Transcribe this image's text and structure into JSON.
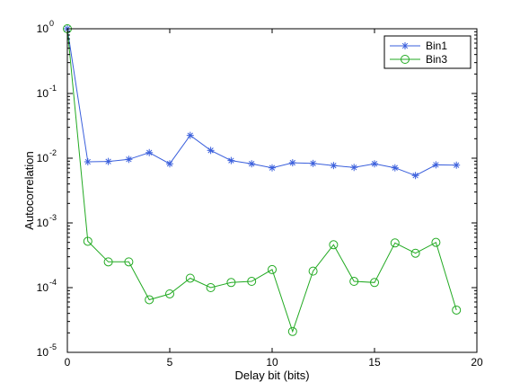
{
  "chart_data": {
    "type": "line",
    "xlabel": "Delay bit (bits)",
    "ylabel": "Autocorrelation",
    "xlim": [
      0,
      20
    ],
    "ylim": [
      1e-05,
      1
    ],
    "yscale": "log",
    "grid": false,
    "legend_position": "top-right",
    "x_ticks": [
      0,
      5,
      10,
      15,
      20
    ],
    "x_tick_labels": [
      "0",
      "5",
      "10",
      "15",
      "20"
    ],
    "y_ticks": [
      1e-05,
      0.0001,
      0.001,
      0.01,
      0.1,
      1
    ],
    "y_tick_labels": [
      {
        "base": "10",
        "exp": "-5"
      },
      {
        "base": "10",
        "exp": "-4"
      },
      {
        "base": "10",
        "exp": "-3"
      },
      {
        "base": "10",
        "exp": "-2"
      },
      {
        "base": "10",
        "exp": "-1"
      },
      {
        "base": "10",
        "exp": "0"
      }
    ],
    "x": [
      0,
      1,
      2,
      3,
      4,
      5,
      6,
      7,
      8,
      9,
      10,
      11,
      12,
      13,
      14,
      15,
      16,
      17,
      18,
      19
    ],
    "series": [
      {
        "name": "Bin1",
        "color": "#3a5fdc",
        "marker": "asterisk",
        "values": [
          1,
          0.0088,
          0.0089,
          0.0096,
          0.0122,
          0.0082,
          0.0225,
          0.0132,
          0.0092,
          0.0082,
          0.0071,
          0.0085,
          0.0083,
          0.0077,
          0.0072,
          0.0082,
          0.0071,
          0.0054,
          0.0079,
          0.0078
        ]
      },
      {
        "name": "Bin3",
        "color": "#22aa22",
        "marker": "circle",
        "values": [
          1,
          0.00052,
          0.00025,
          0.00025,
          6.5e-05,
          8e-05,
          0.00014,
          0.0001,
          0.00012,
          0.000125,
          0.00019,
          2.1e-05,
          0.00018,
          0.00046,
          0.000125,
          0.00012,
          0.00049,
          0.00034,
          0.0005,
          4.5e-05
        ]
      }
    ]
  }
}
